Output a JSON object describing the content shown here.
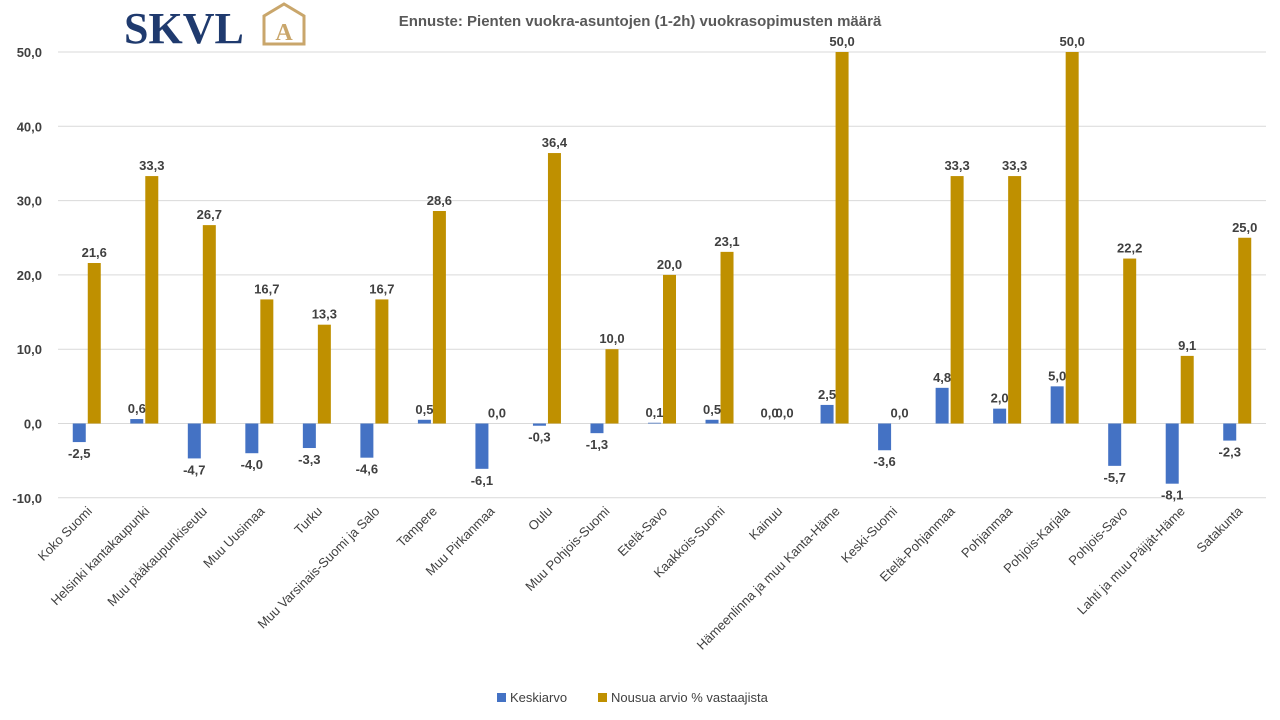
{
  "logo": {
    "text": "SKVL",
    "mark": "A"
  },
  "colors": {
    "series1": "#4472C4",
    "series2": "#BF9000",
    "grid": "#D9D9D9",
    "logo_navy": "#1F3A6E",
    "logo_gold": "#C9A66B"
  },
  "chart_data": {
    "type": "bar",
    "title": "Ennuste: Pienten vuokra-asuntojen (1-2h) vuokrasopimusten määrä",
    "xlabel": "",
    "ylabel": "",
    "ylim": [
      -10,
      50
    ],
    "yticks": [
      "-10,0",
      "0,0",
      "10,0",
      "20,0",
      "30,0",
      "40,0",
      "50,0"
    ],
    "grid": true,
    "legend_position": "bottom",
    "categories": [
      "Koko Suomi",
      "Helsinki kantakaupunki",
      "Muu pääkaupunkiseutu",
      "Muu Uusimaa",
      "Turku",
      "Muu Varsinais-Suomi ja Salo",
      "Tampere",
      "Muu Pirkanmaa",
      "Oulu",
      "Muu Pohjois-Suomi",
      "Etelä-Savo",
      "Kaakkois-Suomi",
      "Kainuu",
      "Hämeenlinna ja muu Kanta-Häme",
      "Keski-Suomi",
      "Etelä-Pohjanmaa",
      "Pohjanmaa",
      "Pohjois-Karjala",
      "Pohjois-Savo",
      "Lahti ja muu Päijät-Häme",
      "Satakunta"
    ],
    "series": [
      {
        "name": "Keskiarvo",
        "values": [
          -2.5,
          0.6,
          -4.7,
          -4.0,
          -3.3,
          -4.6,
          0.5,
          -6.1,
          -0.3,
          -1.3,
          0.1,
          0.5,
          0.0,
          2.5,
          -3.6,
          4.8,
          2.0,
          5.0,
          -5.7,
          -8.1,
          -2.3
        ],
        "labels": [
          "-2,5",
          "0,6",
          "-4,7",
          "-4,0",
          "-3,3",
          "-4,6",
          "0,5",
          "-6,1",
          "-0,3",
          "-1,3",
          "0,1",
          "0,5",
          "0,0",
          "2,5",
          "-3,6",
          "4,8",
          "2,0",
          "5,0",
          "-5,7",
          "-8,1",
          "-2,3"
        ]
      },
      {
        "name": "Nousua arvio % vastaajista",
        "values": [
          21.6,
          33.3,
          26.7,
          16.7,
          13.3,
          16.7,
          28.6,
          0.0,
          36.4,
          10.0,
          20.0,
          23.1,
          0.0,
          50.0,
          0.0,
          33.3,
          33.3,
          50.0,
          22.2,
          9.1,
          25.0
        ],
        "labels": [
          "21,6",
          "33,3",
          "26,7",
          "16,7",
          "13,3",
          "16,7",
          "28,6",
          "0,0",
          "36,4",
          "10,0",
          "20,0",
          "23,1",
          "0,0",
          "50,0",
          "0,0",
          "33,3",
          "33,3",
          "50,0",
          "22,2",
          "9,1",
          "25,0"
        ]
      }
    ]
  }
}
